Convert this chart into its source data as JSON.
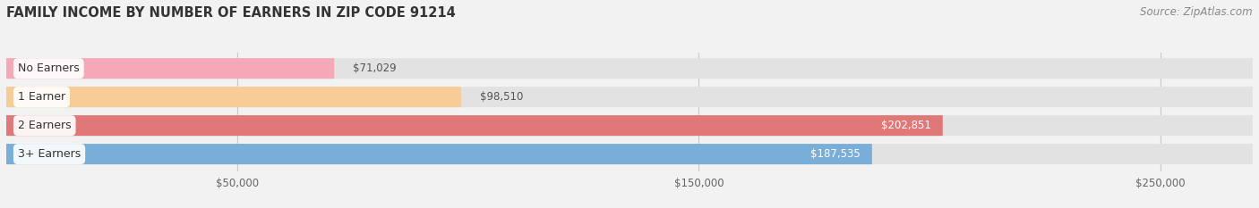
{
  "title": "FAMILY INCOME BY NUMBER OF EARNERS IN ZIP CODE 91214",
  "source": "Source: ZipAtlas.com",
  "categories": [
    "No Earners",
    "1 Earner",
    "2 Earners",
    "3+ Earners"
  ],
  "values": [
    71029,
    98510,
    202851,
    187535
  ],
  "bar_colors": [
    "#f5a8b8",
    "#f7cc96",
    "#e07878",
    "#78aed8"
  ],
  "label_colors": [
    "#555555",
    "#555555",
    "#ffffff",
    "#ffffff"
  ],
  "xmin": 0,
  "xmax": 270000,
  "xticks": [
    50000,
    150000,
    250000
  ],
  "xtick_labels": [
    "$50,000",
    "$150,000",
    "$250,000"
  ],
  "bg_color": "#f2f2f2",
  "bar_bg_color": "#e2e2e2",
  "title_fontsize": 10.5,
  "source_fontsize": 8.5,
  "value_fontsize": 8.5,
  "cat_fontsize": 9
}
